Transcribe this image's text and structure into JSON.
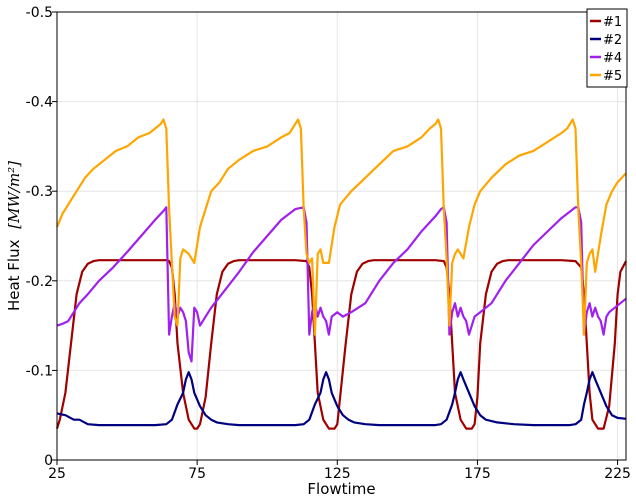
{
  "chart_data": {
    "type": "line",
    "title": "",
    "xlabel": "Flowtime",
    "ylabel": "Heat Flux",
    "ylabel_unit": "[MW/m²]",
    "xlim": [
      25,
      228
    ],
    "ylim": [
      0,
      -0.5
    ],
    "x_ticks": [
      25,
      75,
      125,
      175,
      225
    ],
    "y_ticks": [
      0,
      -0.1,
      -0.2,
      -0.3,
      -0.4,
      -0.5
    ],
    "x_tick_labels": [
      "25",
      "75",
      "125",
      "175",
      "225"
    ],
    "y_tick_labels": [
      "0",
      "-0.1",
      "-0.2",
      "-0.3",
      "-0.4",
      "-0.5"
    ],
    "grid": true,
    "legend": "top-right",
    "series": [
      {
        "name": "#1",
        "color": "#a00000",
        "x": [
          25,
          26,
          28,
          30,
          32,
          34,
          36,
          38,
          40,
          45,
          50,
          55,
          60,
          64,
          65,
          66,
          67,
          68,
          70,
          72,
          74,
          75,
          76,
          78,
          80,
          82,
          84,
          86,
          88,
          90,
          95,
          100,
          105,
          110,
          114,
          115,
          116,
          117,
          118,
          120,
          122,
          124,
          125,
          126,
          128,
          130,
          132,
          134,
          136,
          138,
          140,
          145,
          150,
          155,
          160,
          163,
          164,
          165,
          166,
          167,
          169,
          171,
          173,
          174,
          175,
          176,
          178,
          180,
          182,
          184,
          186,
          188,
          190,
          195,
          200,
          205,
          210,
          212,
          213,
          214,
          215,
          216,
          218,
          220,
          222,
          224,
          225,
          226,
          228
        ],
        "y": [
          -0.035,
          -0.045,
          -0.075,
          -0.13,
          -0.185,
          -0.21,
          -0.219,
          -0.222,
          -0.223,
          -0.223,
          -0.223,
          -0.223,
          -0.223,
          -0.223,
          -0.222,
          -0.215,
          -0.185,
          -0.13,
          -0.075,
          -0.045,
          -0.035,
          -0.035,
          -0.04,
          -0.07,
          -0.13,
          -0.185,
          -0.21,
          -0.219,
          -0.222,
          -0.223,
          -0.223,
          -0.223,
          -0.223,
          -0.223,
          -0.222,
          -0.215,
          -0.185,
          -0.13,
          -0.075,
          -0.045,
          -0.035,
          -0.035,
          -0.04,
          -0.07,
          -0.13,
          -0.185,
          -0.21,
          -0.219,
          -0.222,
          -0.223,
          -0.223,
          -0.223,
          -0.223,
          -0.223,
          -0.223,
          -0.222,
          -0.215,
          -0.185,
          -0.13,
          -0.075,
          -0.045,
          -0.035,
          -0.035,
          -0.04,
          -0.07,
          -0.13,
          -0.185,
          -0.21,
          -0.219,
          -0.222,
          -0.223,
          -0.223,
          -0.223,
          -0.223,
          -0.223,
          -0.223,
          -0.222,
          -0.215,
          -0.185,
          -0.13,
          -0.075,
          -0.045,
          -0.035,
          -0.035,
          -0.06,
          -0.13,
          -0.185,
          -0.21,
          -0.222
        ]
      },
      {
        "name": "#2",
        "color": "#000080",
        "x": [
          25,
          28,
          31,
          33,
          36,
          40,
          50,
          60,
          64,
          66,
          68,
          70,
          71,
          72,
          73,
          74,
          76,
          78,
          80,
          82,
          86,
          90,
          100,
          110,
          113,
          115,
          117,
          119,
          120,
          121,
          122,
          123,
          125,
          127,
          129,
          131,
          135,
          140,
          150,
          160,
          162,
          164,
          166,
          167,
          168,
          169,
          170,
          172,
          174,
          176,
          178,
          182,
          188,
          195,
          200,
          208,
          210,
          212,
          213,
          214,
          215,
          216,
          217,
          219,
          221,
          223,
          225,
          228
        ],
        "y": [
          -0.052,
          -0.05,
          -0.045,
          -0.045,
          -0.04,
          -0.039,
          -0.039,
          -0.039,
          -0.04,
          -0.045,
          -0.062,
          -0.075,
          -0.09,
          -0.098,
          -0.09,
          -0.075,
          -0.06,
          -0.05,
          -0.045,
          -0.042,
          -0.04,
          -0.039,
          -0.039,
          -0.039,
          -0.04,
          -0.045,
          -0.062,
          -0.075,
          -0.09,
          -0.098,
          -0.09,
          -0.075,
          -0.06,
          -0.05,
          -0.045,
          -0.042,
          -0.04,
          -0.039,
          -0.039,
          -0.039,
          -0.04,
          -0.045,
          -0.062,
          -0.075,
          -0.09,
          -0.098,
          -0.09,
          -0.075,
          -0.06,
          -0.05,
          -0.045,
          -0.042,
          -0.04,
          -0.039,
          -0.039,
          -0.039,
          -0.04,
          -0.045,
          -0.062,
          -0.075,
          -0.09,
          -0.098,
          -0.09,
          -0.075,
          -0.06,
          -0.05,
          -0.047,
          -0.046
        ]
      },
      {
        "name": "#4",
        "color": "#a020f0",
        "x": [
          25,
          27,
          29,
          31,
          33,
          36,
          40,
          45,
          50,
          55,
          60,
          63,
          64,
          65,
          66,
          67,
          68,
          69,
          70,
          71,
          72,
          73,
          74,
          75,
          76,
          78,
          80,
          85,
          90,
          95,
          100,
          105,
          110,
          113,
          114,
          115,
          116,
          117,
          118,
          119,
          120,
          121,
          122,
          123,
          125,
          127,
          130,
          135,
          140,
          145,
          150,
          155,
          160,
          162,
          163,
          164,
          165,
          166,
          167,
          168,
          169,
          170,
          171,
          172,
          174,
          176,
          180,
          185,
          190,
          195,
          200,
          205,
          210,
          211,
          212,
          213,
          214,
          215,
          216,
          217,
          218,
          219,
          220,
          221,
          222,
          224,
          226,
          228
        ],
        "y": [
          -0.15,
          -0.152,
          -0.155,
          -0.165,
          -0.175,
          -0.185,
          -0.2,
          -0.215,
          -0.232,
          -0.25,
          -0.268,
          -0.278,
          -0.282,
          -0.14,
          -0.16,
          -0.175,
          -0.16,
          -0.17,
          -0.165,
          -0.155,
          -0.12,
          -0.11,
          -0.17,
          -0.165,
          -0.15,
          -0.16,
          -0.17,
          -0.19,
          -0.21,
          -0.232,
          -0.25,
          -0.268,
          -0.28,
          -0.282,
          -0.265,
          -0.14,
          -0.165,
          -0.175,
          -0.16,
          -0.17,
          -0.16,
          -0.155,
          -0.14,
          -0.16,
          -0.165,
          -0.16,
          -0.165,
          -0.175,
          -0.2,
          -0.22,
          -0.235,
          -0.255,
          -0.272,
          -0.28,
          -0.282,
          -0.265,
          -0.14,
          -0.165,
          -0.175,
          -0.16,
          -0.17,
          -0.16,
          -0.155,
          -0.14,
          -0.16,
          -0.165,
          -0.175,
          -0.2,
          -0.22,
          -0.24,
          -0.255,
          -0.27,
          -0.282,
          -0.282,
          -0.265,
          -0.14,
          -0.165,
          -0.175,
          -0.16,
          -0.17,
          -0.16,
          -0.155,
          -0.14,
          -0.16,
          -0.165,
          -0.17,
          -0.175,
          -0.18
        ]
      },
      {
        "name": "#5",
        "color": "#ffa500",
        "x": [
          25,
          27,
          29,
          32,
          35,
          38,
          42,
          46,
          50,
          54,
          58,
          60,
          62,
          63,
          64,
          65,
          66,
          67,
          68,
          69,
          70,
          72,
          74,
          76,
          78,
          80,
          83,
          86,
          90,
          95,
          100,
          105,
          108,
          110,
          111,
          112,
          113,
          114,
          115,
          116,
          117,
          118,
          119,
          120,
          122,
          124,
          126,
          130,
          135,
          140,
          145,
          150,
          155,
          158,
          160,
          161,
          162,
          163,
          164,
          165,
          166,
          167,
          168,
          170,
          172,
          174,
          176,
          180,
          185,
          190,
          195,
          200,
          205,
          207,
          208,
          209,
          210,
          211,
          212,
          213,
          214,
          215,
          216,
          217,
          219,
          221,
          223,
          225,
          228
        ],
        "y": [
          -0.26,
          -0.275,
          -0.285,
          -0.3,
          -0.315,
          -0.325,
          -0.335,
          -0.345,
          -0.35,
          -0.36,
          -0.365,
          -0.37,
          -0.375,
          -0.38,
          -0.37,
          -0.28,
          -0.22,
          -0.16,
          -0.15,
          -0.225,
          -0.235,
          -0.23,
          -0.22,
          -0.26,
          -0.28,
          -0.3,
          -0.31,
          -0.325,
          -0.335,
          -0.345,
          -0.35,
          -0.36,
          -0.365,
          -0.375,
          -0.38,
          -0.37,
          -0.28,
          -0.23,
          -0.22,
          -0.225,
          -0.14,
          -0.23,
          -0.235,
          -0.22,
          -0.22,
          -0.26,
          -0.285,
          -0.3,
          -0.315,
          -0.33,
          -0.345,
          -0.35,
          -0.36,
          -0.37,
          -0.375,
          -0.38,
          -0.37,
          -0.28,
          -0.225,
          -0.15,
          -0.22,
          -0.23,
          -0.235,
          -0.225,
          -0.26,
          -0.285,
          -0.3,
          -0.315,
          -0.33,
          -0.34,
          -0.345,
          -0.355,
          -0.365,
          -0.37,
          -0.375,
          -0.38,
          -0.37,
          -0.28,
          -0.22,
          -0.14,
          -0.22,
          -0.23,
          -0.235,
          -0.21,
          -0.25,
          -0.285,
          -0.3,
          -0.31,
          -0.32
        ]
      }
    ]
  }
}
